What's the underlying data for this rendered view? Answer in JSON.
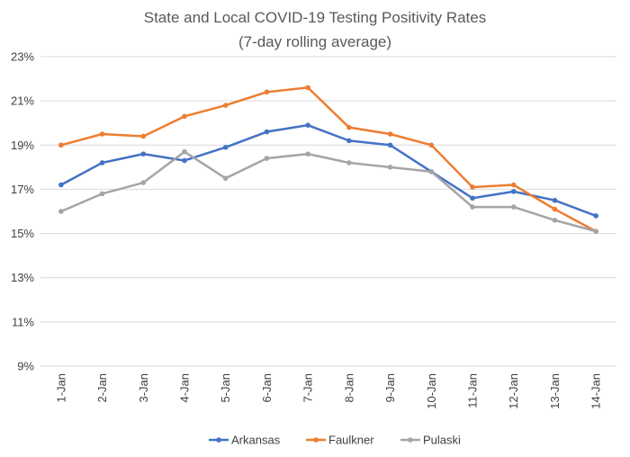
{
  "chart_data": {
    "type": "line",
    "title": "State and Local COVID-19 Testing Positivity Rates",
    "subtitle": "(7-day rolling average)",
    "xlabel": "",
    "ylabel": "",
    "categories": [
      "1-Jan",
      "2-Jan",
      "3-Jan",
      "4-Jan",
      "5-Jan",
      "6-Jan",
      "7-Jan",
      "8-Jan",
      "9-Jan",
      "10-Jan",
      "11-Jan",
      "12-Jan",
      "13-Jan",
      "14-Jan"
    ],
    "ylim": [
      9,
      23
    ],
    "yticks": [
      9,
      11,
      13,
      15,
      17,
      19,
      21,
      23
    ],
    "ytick_labels": [
      "9%",
      "11%",
      "13%",
      "15%",
      "17%",
      "19%",
      "21%",
      "23%"
    ],
    "grid": true,
    "legend_position": "bottom",
    "series": [
      {
        "name": "Arkansas",
        "color": "#4472c4",
        "values": [
          17.2,
          18.2,
          18.6,
          18.3,
          18.9,
          19.6,
          19.9,
          19.2,
          19.0,
          17.8,
          16.6,
          16.9,
          16.5,
          15.8
        ]
      },
      {
        "name": "Faulkner",
        "color": "#ed7d31",
        "values": [
          19.0,
          19.5,
          19.4,
          20.3,
          20.8,
          21.4,
          21.6,
          19.8,
          19.5,
          19.0,
          17.1,
          17.2,
          16.1,
          15.1
        ]
      },
      {
        "name": "Pulaski",
        "color": "#a5a5a5",
        "values": [
          16.0,
          16.8,
          17.3,
          18.7,
          17.5,
          18.4,
          18.6,
          18.2,
          18.0,
          17.8,
          16.2,
          16.2,
          15.6,
          15.1
        ]
      }
    ]
  }
}
